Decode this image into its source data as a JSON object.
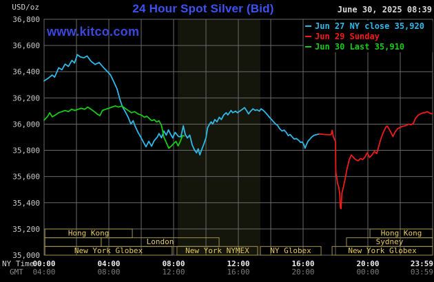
{
  "header": {
    "unit_label": "USD/oz",
    "title": "24 Hour Spot Silver (Bid)",
    "datetime": "June 30, 2025 08:39"
  },
  "watermark": {
    "text": "www.kitco.com"
  },
  "legend": {
    "items": [
      {
        "name": "jun27",
        "label": "Jun 27 NY close 35,920",
        "color": "#2fb9e9"
      },
      {
        "name": "jun29",
        "label": "Jun 29 Sunday",
        "color": "#f31a1a"
      },
      {
        "name": "jun30",
        "label": "Jun 30 Last 35,910",
        "color": "#17cb17"
      }
    ]
  },
  "axes": {
    "y_labels": [
      "36,800",
      "36,600",
      "36,400",
      "36,200",
      "36,000",
      "35,800",
      "35,600",
      "35,400",
      "35,200",
      "35,000"
    ],
    "ny_time_label": "NY Time",
    "gmt_label": "GMT",
    "ny_ticks": [
      {
        "t": 0,
        "label": "00:00",
        "align": "center"
      },
      {
        "t": 4,
        "label": "04:00",
        "align": "center"
      },
      {
        "t": 8,
        "label": "08:00",
        "align": "center"
      },
      {
        "t": 12,
        "label": "12:00",
        "align": "center"
      },
      {
        "t": 16,
        "label": "16:00",
        "align": "center"
      },
      {
        "t": 20,
        "label": "20:00",
        "align": "center"
      },
      {
        "t": 23.98,
        "label": "23:59",
        "align": "end"
      }
    ],
    "gmt_ticks": [
      {
        "t": 0,
        "label": "04:00",
        "align": "center"
      },
      {
        "t": 4,
        "label": "08:00",
        "align": "center"
      },
      {
        "t": 8,
        "label": "12:00",
        "align": "center"
      },
      {
        "t": 12,
        "label": "16:00",
        "align": "center"
      },
      {
        "t": 16,
        "label": "20:00",
        "align": "center"
      },
      {
        "t": 20,
        "label": "00:00",
        "align": "center"
      },
      {
        "t": 23.98,
        "label": "03:59",
        "align": "end"
      }
    ]
  },
  "sessions": {
    "rows": [
      [
        {
          "label": "Hong Kong",
          "start": 0.05,
          "end": 5.45
        },
        {
          "label": "Hong Kong",
          "start": 20.13,
          "end": 24
        }
      ],
      [
        {
          "label": "",
          "start": 0.05,
          "end": 3.53
        },
        {
          "label": "London",
          "start": 3.53,
          "end": 10.81
        },
        {
          "label": "Sydney",
          "start": 18.68,
          "end": 24
        }
      ],
      [
        {
          "label": "New York Globex",
          "start": 0.05,
          "end": 7.91
        },
        {
          "label": "New York NYMEX",
          "start": 8.21,
          "end": 13.19
        },
        {
          "label": "NY Globex",
          "start": 13.36,
          "end": 17.11
        },
        {
          "label": "New York Globex",
          "start": 17.79,
          "end": 24
        }
      ]
    ]
  },
  "colors": {
    "background": "#000000",
    "grid": "#6a6a6a",
    "band": "#14160c",
    "title": "#3c52f2",
    "watermark": "#3a48dd",
    "datetime": "#d8d8d8",
    "unit_label": "#cfcfcf",
    "y_label": "#c9c9c9",
    "ny_tick": "#ebebeb",
    "gmt_tick": "#7a7a7a",
    "ny_axis_label": "#d0d0d0",
    "gmt_axis_label": "#8a8a8a",
    "session_border": "#a2924d",
    "session_text": "#e6ca5f"
  },
  "chart_data": {
    "type": "line",
    "title": "24 Hour Spot Silver (Bid)",
    "xlabel": "NY Time (hours)",
    "ylabel": "USD/oz",
    "x_range": [
      0,
      24
    ],
    "y_range": [
      35000,
      36800
    ],
    "y_grid_step": 200,
    "x_grid_step_hours": 2,
    "grid": true,
    "legend_position": "top-right",
    "band": {
      "name": "nymex-floor-session",
      "start": 8.26,
      "end": 13.36
    },
    "series": [
      {
        "name": "jun27-ny",
        "label": "Jun 27 NY close 35,920",
        "color": "#2fb9e9",
        "points": [
          [
            0,
            36330
          ],
          [
            0.25,
            36350
          ],
          [
            0.5,
            36375
          ],
          [
            0.65,
            36358
          ],
          [
            0.9,
            36430
          ],
          [
            1.1,
            36415
          ],
          [
            1.3,
            36458
          ],
          [
            1.5,
            36440
          ],
          [
            1.72,
            36486
          ],
          [
            1.88,
            36466
          ],
          [
            2.05,
            36530
          ],
          [
            2.25,
            36512
          ],
          [
            2.45,
            36506
          ],
          [
            2.66,
            36520
          ],
          [
            2.9,
            36480
          ],
          [
            3.15,
            36455
          ],
          [
            3.4,
            36470
          ],
          [
            3.65,
            36434
          ],
          [
            3.9,
            36402
          ],
          [
            4.1,
            36376
          ],
          [
            4.3,
            36324
          ],
          [
            4.5,
            36270
          ],
          [
            4.7,
            36182
          ],
          [
            4.85,
            36130
          ],
          [
            5.02,
            36093
          ],
          [
            5.2,
            36051
          ],
          [
            5.36,
            36000
          ],
          [
            5.5,
            36026
          ],
          [
            5.62,
            35984
          ],
          [
            5.8,
            35938
          ],
          [
            6.0,
            35895
          ],
          [
            6.18,
            35853
          ],
          [
            6.3,
            35827
          ],
          [
            6.47,
            35869
          ],
          [
            6.64,
            35832
          ],
          [
            6.8,
            35874
          ],
          [
            7.0,
            35902
          ],
          [
            7.1,
            35928
          ],
          [
            7.25,
            35896
          ],
          [
            7.4,
            35947
          ],
          [
            7.55,
            35916
          ],
          [
            7.68,
            35956
          ],
          [
            7.82,
            35921
          ],
          [
            7.95,
            35895
          ],
          [
            8.1,
            35937
          ],
          [
            8.3,
            35905
          ],
          [
            8.45,
            35903
          ],
          [
            8.6,
            35987
          ],
          [
            8.72,
            35921
          ],
          [
            8.85,
            35895
          ],
          [
            9.0,
            35916
          ],
          [
            9.15,
            35842
          ],
          [
            9.3,
            35800
          ],
          [
            9.42,
            35781
          ],
          [
            9.52,
            35812
          ],
          [
            9.62,
            35765
          ],
          [
            9.72,
            35800
          ],
          [
            9.85,
            35842
          ],
          [
            10.0,
            35895
          ],
          [
            10.1,
            35973
          ],
          [
            10.22,
            36000
          ],
          [
            10.32,
            36017
          ],
          [
            10.42,
            36000
          ],
          [
            10.55,
            36035
          ],
          [
            10.68,
            36017
          ],
          [
            10.82,
            36052
          ],
          [
            10.95,
            36035
          ],
          [
            11.1,
            36070
          ],
          [
            11.25,
            36087
          ],
          [
            11.35,
            36070
          ],
          [
            11.55,
            36104
          ],
          [
            11.65,
            36087
          ],
          [
            11.82,
            36099
          ],
          [
            11.95,
            36087
          ],
          [
            12.25,
            36113
          ],
          [
            12.38,
            36126
          ],
          [
            12.5,
            36104
          ],
          [
            12.63,
            36078
          ],
          [
            12.76,
            36099
          ],
          [
            12.9,
            36116
          ],
          [
            13.05,
            36104
          ],
          [
            13.15,
            36110
          ],
          [
            13.3,
            36099
          ],
          [
            13.4,
            36116
          ],
          [
            13.55,
            36104
          ],
          [
            13.68,
            36087
          ],
          [
            13.8,
            36070
          ],
          [
            13.92,
            36052
          ],
          [
            14.05,
            36035
          ],
          [
            14.18,
            36017
          ],
          [
            14.3,
            36000
          ],
          [
            14.42,
            35990
          ],
          [
            14.55,
            35965
          ],
          [
            14.7,
            35947
          ],
          [
            14.82,
            35955
          ],
          [
            14.95,
            35938
          ],
          [
            15.08,
            35912
          ],
          [
            15.2,
            35921
          ],
          [
            15.32,
            35903
          ],
          [
            15.45,
            35886
          ],
          [
            15.58,
            35890
          ],
          [
            15.72,
            35877
          ],
          [
            15.85,
            35860
          ],
          [
            15.95,
            35864
          ],
          [
            16.05,
            35842
          ],
          [
            16.12,
            35816
          ],
          [
            16.2,
            35842
          ],
          [
            16.3,
            35869
          ],
          [
            16.42,
            35886
          ],
          [
            16.55,
            35903
          ],
          [
            16.68,
            35915
          ],
          [
            16.82,
            35920
          ],
          [
            17.0,
            35925
          ]
        ]
      },
      {
        "name": "jun29-sunday",
        "label": "Jun 29 Sunday",
        "color": "#f31a1a",
        "points": [
          [
            17.0,
            35925
          ],
          [
            17.3,
            35921
          ],
          [
            17.6,
            35919
          ],
          [
            17.73,
            35920
          ],
          [
            17.8,
            35953
          ],
          [
            17.87,
            35903
          ],
          [
            17.96,
            35877
          ],
          [
            18.0,
            35868
          ],
          [
            18.02,
            35632
          ],
          [
            18.08,
            35589
          ],
          [
            18.13,
            35545
          ],
          [
            18.2,
            35520
          ],
          [
            18.26,
            35475
          ],
          [
            18.3,
            35362
          ],
          [
            18.34,
            35354
          ],
          [
            18.4,
            35475
          ],
          [
            18.5,
            35528
          ],
          [
            18.62,
            35598
          ],
          [
            18.7,
            35650
          ],
          [
            18.85,
            35729
          ],
          [
            18.98,
            35764
          ],
          [
            19.1,
            35746
          ],
          [
            19.25,
            35729
          ],
          [
            19.4,
            35720
          ],
          [
            19.55,
            35738
          ],
          [
            19.68,
            35729
          ],
          [
            19.83,
            35751
          ],
          [
            19.96,
            35781
          ],
          [
            20.1,
            35746
          ],
          [
            20.26,
            35765
          ],
          [
            20.4,
            35792
          ],
          [
            20.55,
            35775
          ],
          [
            20.7,
            35845
          ],
          [
            20.85,
            35905
          ],
          [
            21.0,
            35950
          ],
          [
            21.12,
            35978
          ],
          [
            21.2,
            35985
          ],
          [
            21.3,
            35965
          ],
          [
            21.42,
            35938
          ],
          [
            21.55,
            35905
          ],
          [
            21.68,
            35940
          ],
          [
            21.84,
            35965
          ],
          [
            21.97,
            35973
          ],
          [
            22.1,
            35982
          ],
          [
            22.26,
            35986
          ],
          [
            22.4,
            35992
          ],
          [
            22.52,
            36000
          ],
          [
            22.68,
            35995
          ],
          [
            22.82,
            36008
          ],
          [
            22.95,
            36045
          ],
          [
            23.1,
            36068
          ],
          [
            23.25,
            36078
          ],
          [
            23.4,
            36086
          ],
          [
            23.55,
            36088
          ],
          [
            23.67,
            36095
          ],
          [
            23.8,
            36086
          ],
          [
            23.97,
            36078
          ]
        ]
      },
      {
        "name": "jun30-last",
        "label": "Jun 30 Last 35,910",
        "color": "#17cb17",
        "points": [
          [
            0,
            36030
          ],
          [
            0.2,
            36056
          ],
          [
            0.35,
            36087
          ],
          [
            0.5,
            36056
          ],
          [
            0.7,
            36070
          ],
          [
            0.9,
            36087
          ],
          [
            1.1,
            36095
          ],
          [
            1.3,
            36104
          ],
          [
            1.5,
            36095
          ],
          [
            1.7,
            36113
          ],
          [
            1.9,
            36104
          ],
          [
            2.1,
            36113
          ],
          [
            2.3,
            36121
          ],
          [
            2.5,
            36113
          ],
          [
            2.7,
            36130
          ],
          [
            2.9,
            36113
          ],
          [
            3.1,
            36095
          ],
          [
            3.3,
            36075
          ],
          [
            3.45,
            36065
          ],
          [
            3.6,
            36104
          ],
          [
            3.8,
            36113
          ],
          [
            4.0,
            36121
          ],
          [
            4.2,
            36130
          ],
          [
            4.4,
            36139
          ],
          [
            4.6,
            36130
          ],
          [
            4.8,
            36139
          ],
          [
            5.0,
            36121
          ],
          [
            5.2,
            36104
          ],
          [
            5.4,
            36087
          ],
          [
            5.6,
            36095
          ],
          [
            5.8,
            36078
          ],
          [
            6.0,
            36069
          ],
          [
            6.2,
            36052
          ],
          [
            6.35,
            36060
          ],
          [
            6.5,
            36043
          ],
          [
            6.65,
            36026
          ],
          [
            6.8,
            36034
          ],
          [
            6.95,
            36017
          ],
          [
            7.1,
            36026
          ],
          [
            7.25,
            35991
          ],
          [
            7.4,
            35900
          ],
          [
            7.55,
            35860
          ],
          [
            7.7,
            35816
          ],
          [
            7.85,
            35831
          ],
          [
            8.0,
            35851
          ],
          [
            8.15,
            35868
          ],
          [
            8.28,
            35834
          ],
          [
            8.42,
            35870
          ],
          [
            8.55,
            35912
          ],
          [
            8.65,
            35910
          ]
        ]
      }
    ]
  }
}
